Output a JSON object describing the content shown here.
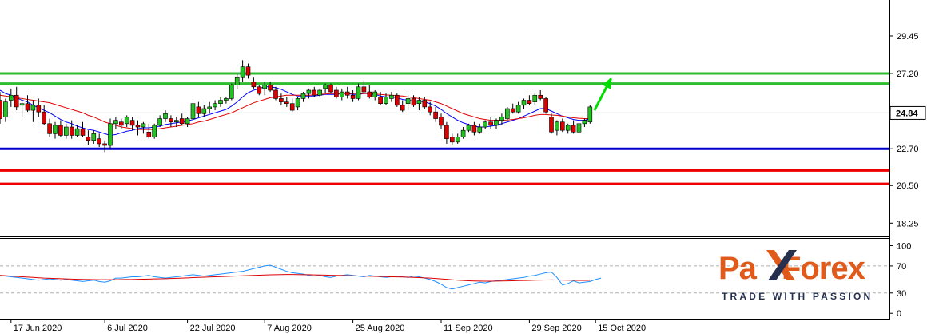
{
  "chart_data": {
    "type": "candlestick",
    "title": "",
    "xlabel": "",
    "ylabel": "",
    "x_tick_labels": [
      "17 Jun 2020",
      "6 Jul 2020",
      "22 Jul 2020",
      "7 Aug 2020",
      "25 Aug 2020",
      "11 Sep 2020",
      "29 Sep 2020",
      "15 Oct 2020"
    ],
    "y_tick_labels": [
      "29.45",
      "27.20",
      "22.70",
      "20.50",
      "18.25"
    ],
    "y_ticks": [
      29.45,
      27.2,
      22.7,
      20.5,
      18.25
    ],
    "ylim": [
      17.5,
      31.6
    ],
    "current_price": {
      "label": "24.84",
      "value": 24.84
    },
    "candles": [
      [
        25.6,
        26.1,
        24.2,
        24.5
      ],
      [
        24.6,
        25.7,
        24.3,
        25.5
      ],
      [
        25.6,
        26.3,
        25.2,
        25.9
      ],
      [
        25.9,
        26.4,
        25.0,
        25.2
      ],
      [
        25.3,
        25.8,
        24.6,
        25.4
      ],
      [
        25.4,
        25.9,
        24.9,
        25.0
      ],
      [
        25.0,
        25.6,
        24.3,
        25.3
      ],
      [
        25.3,
        25.7,
        24.6,
        24.9
      ],
      [
        24.9,
        25.3,
        24.1,
        24.2
      ],
      [
        24.2,
        24.5,
        23.4,
        23.6
      ],
      [
        23.6,
        24.3,
        23.3,
        24.1
      ],
      [
        24.1,
        24.4,
        23.4,
        23.5
      ],
      [
        23.5,
        24.2,
        23.3,
        24.0
      ],
      [
        24.0,
        24.4,
        23.3,
        23.5
      ],
      [
        23.5,
        24.1,
        23.4,
        23.9
      ],
      [
        23.9,
        24.3,
        23.4,
        23.5
      ],
      [
        23.4,
        23.8,
        22.9,
        23.2
      ],
      [
        23.2,
        23.8,
        23.0,
        23.6
      ],
      [
        23.3,
        23.6,
        22.8,
        23.0
      ],
      [
        23.0,
        23.2,
        22.5,
        22.9
      ],
      [
        22.9,
        24.5,
        22.7,
        24.2
      ],
      [
        24.2,
        24.6,
        23.9,
        24.4
      ],
      [
        24.3,
        24.5,
        23.9,
        24.1
      ],
      [
        24.2,
        24.7,
        24.0,
        24.6
      ],
      [
        24.4,
        24.6,
        23.8,
        24.1
      ],
      [
        24.1,
        24.4,
        23.5,
        24.0
      ],
      [
        24.0,
        24.3,
        23.6,
        24.2
      ],
      [
        23.7,
        24.2,
        23.3,
        23.4
      ],
      [
        23.4,
        24.2,
        23.3,
        24.1
      ],
      [
        24.1,
        24.7,
        24.0,
        24.5
      ],
      [
        24.5,
        25.0,
        24.3,
        24.8
      ],
      [
        24.5,
        24.7,
        24.0,
        24.3
      ],
      [
        24.3,
        24.6,
        24.0,
        24.4
      ],
      [
        24.5,
        24.8,
        24.1,
        24.2
      ],
      [
        24.2,
        24.6,
        24.0,
        24.5
      ],
      [
        24.5,
        25.5,
        24.4,
        25.4
      ],
      [
        25.2,
        25.5,
        24.6,
        24.8
      ],
      [
        24.8,
        25.3,
        24.6,
        25.1
      ],
      [
        25.1,
        25.5,
        24.8,
        25.2
      ],
      [
        25.2,
        25.6,
        25.0,
        25.4
      ],
      [
        25.4,
        25.8,
        25.2,
        25.6
      ],
      [
        25.6,
        25.8,
        25.4,
        25.7
      ],
      [
        25.7,
        26.6,
        25.6,
        26.5
      ],
      [
        26.5,
        27.2,
        26.3,
        27.0
      ],
      [
        27.0,
        28.0,
        26.7,
        27.6
      ],
      [
        27.6,
        27.8,
        26.9,
        27.1
      ],
      [
        26.7,
        27.0,
        26.3,
        26.4
      ],
      [
        26.4,
        26.5,
        25.9,
        26.0
      ],
      [
        26.3,
        26.7,
        25.9,
        26.5
      ],
      [
        26.5,
        26.7,
        26.1,
        26.2
      ],
      [
        26.2,
        26.4,
        25.6,
        25.7
      ],
      [
        25.7,
        26.0,
        25.3,
        25.5
      ],
      [
        25.5,
        25.8,
        25.2,
        25.4
      ],
      [
        25.4,
        25.7,
        24.9,
        25.0
      ],
      [
        25.2,
        25.8,
        25.0,
        25.7
      ],
      [
        25.7,
        26.1,
        25.5,
        26.0
      ],
      [
        26.0,
        26.3,
        25.7,
        26.2
      ],
      [
        26.2,
        26.4,
        25.8,
        25.9
      ],
      [
        25.9,
        26.3,
        25.8,
        26.2
      ],
      [
        26.3,
        26.6,
        26.0,
        26.5
      ],
      [
        26.5,
        26.6,
        26.0,
        26.1
      ],
      [
        26.2,
        26.4,
        25.7,
        25.8
      ],
      [
        25.8,
        26.3,
        25.6,
        26.1
      ],
      [
        26.1,
        26.4,
        25.7,
        25.9
      ],
      [
        25.9,
        26.2,
        25.5,
        25.7
      ],
      [
        25.7,
        26.6,
        25.6,
        26.4
      ],
      [
        26.4,
        26.8,
        26.0,
        26.1
      ],
      [
        26.1,
        26.5,
        25.7,
        25.8
      ],
      [
        25.8,
        26.2,
        25.6,
        26.1
      ],
      [
        25.8,
        26.1,
        25.3,
        25.4
      ],
      [
        25.4,
        26.0,
        25.3,
        25.8
      ],
      [
        25.7,
        26.1,
        25.5,
        25.9
      ],
      [
        25.9,
        26.0,
        25.2,
        25.3
      ],
      [
        25.3,
        25.6,
        24.9,
        25.0
      ],
      [
        25.4,
        25.9,
        25.0,
        25.7
      ],
      [
        25.7,
        25.9,
        25.2,
        25.3
      ],
      [
        25.4,
        25.8,
        25.0,
        25.6
      ],
      [
        25.6,
        25.8,
        25.1,
        25.2
      ],
      [
        25.2,
        25.5,
        24.7,
        24.9
      ],
      [
        24.9,
        25.2,
        24.3,
        24.5
      ],
      [
        24.6,
        24.8,
        23.9,
        24.1
      ],
      [
        24.1,
        24.3,
        23.0,
        23.3
      ],
      [
        23.4,
        23.6,
        22.9,
        23.1
      ],
      [
        23.1,
        23.6,
        23.0,
        23.4
      ],
      [
        23.4,
        24.0,
        23.3,
        23.8
      ],
      [
        23.8,
        24.2,
        23.7,
        24.1
      ],
      [
        24.1,
        24.3,
        23.5,
        23.7
      ],
      [
        23.7,
        24.2,
        23.6,
        24.0
      ],
      [
        24.0,
        24.4,
        23.9,
        24.3
      ],
      [
        24.3,
        24.6,
        23.9,
        24.1
      ],
      [
        24.1,
        24.5,
        23.9,
        24.4
      ],
      [
        24.4,
        24.8,
        24.1,
        24.6
      ],
      [
        24.5,
        25.2,
        24.4,
        25.1
      ],
      [
        25.1,
        25.4,
        24.8,
        24.9
      ],
      [
        24.9,
        25.5,
        24.8,
        25.3
      ],
      [
        25.3,
        25.7,
        25.1,
        25.6
      ],
      [
        25.6,
        25.9,
        25.3,
        25.4
      ],
      [
        25.5,
        26.0,
        25.3,
        25.9
      ],
      [
        25.9,
        26.2,
        25.6,
        25.7
      ],
      [
        25.7,
        25.8,
        24.8,
        24.9
      ],
      [
        24.6,
        24.8,
        23.6,
        23.7
      ],
      [
        23.8,
        24.4,
        23.5,
        24.3
      ],
      [
        24.3,
        24.5,
        23.7,
        23.8
      ],
      [
        23.8,
        24.2,
        23.6,
        24.1
      ],
      [
        24.1,
        24.4,
        23.6,
        23.7
      ],
      [
        23.7,
        24.3,
        23.6,
        24.2
      ],
      [
        24.2,
        24.5,
        24.0,
        24.4
      ],
      [
        24.3,
        25.3,
        24.2,
        25.2
      ]
    ],
    "moving_averages": [
      {
        "color": "#0000ff",
        "values": [
          26.2,
          26.0,
          25.9,
          25.75,
          25.6,
          25.5,
          25.3,
          25.15,
          25.0,
          24.85,
          24.65,
          24.45,
          24.3,
          24.2,
          24.05,
          23.95,
          23.85,
          23.8,
          23.7,
          23.6,
          23.5,
          23.55,
          23.65,
          23.75,
          23.8,
          23.9,
          23.95,
          23.95,
          24.0,
          24.05,
          24.15,
          24.2,
          24.25,
          24.3,
          24.35,
          24.45,
          24.55,
          24.65,
          24.75,
          24.85,
          24.95,
          25.05,
          25.25,
          25.5,
          25.8,
          26.05,
          26.2,
          26.3,
          26.4,
          26.4,
          26.35,
          26.25,
          26.1,
          25.95,
          25.85,
          25.85,
          25.85,
          25.85,
          25.9,
          25.95,
          25.95,
          25.95,
          26.0,
          26.0,
          25.95,
          25.95,
          26.0,
          26.0,
          25.95,
          25.85,
          25.8,
          25.8,
          25.75,
          25.65,
          25.6,
          25.55,
          25.55,
          25.5,
          25.4,
          25.25,
          25.05,
          24.8,
          24.6,
          24.4,
          24.25,
          24.15,
          24.05,
          24.0,
          24.0,
          24.05,
          24.1,
          24.2,
          24.3,
          24.4,
          24.5,
          24.65,
          24.8,
          24.95,
          25.1,
          25.1,
          24.95,
          24.8,
          24.65,
          24.55,
          24.45,
          24.4,
          24.4,
          24.5
        ]
      },
      {
        "color": "#e00000",
        "values": [
          25.9,
          25.85,
          25.8,
          25.75,
          25.7,
          25.65,
          25.6,
          25.55,
          25.5,
          25.45,
          25.35,
          25.25,
          25.15,
          25.05,
          24.95,
          24.85,
          24.7,
          24.6,
          24.45,
          24.3,
          24.2,
          24.1,
          24.0,
          23.95,
          23.9,
          23.85,
          23.85,
          23.85,
          23.85,
          23.9,
          23.95,
          24.0,
          24.05,
          24.1,
          24.15,
          24.2,
          24.3,
          24.35,
          24.45,
          24.55,
          24.65,
          24.75,
          24.85,
          25.0,
          25.15,
          25.3,
          25.45,
          25.55,
          25.65,
          25.75,
          25.8,
          25.85,
          25.9,
          25.9,
          25.9,
          25.9,
          25.9,
          25.92,
          25.95,
          25.97,
          26.0,
          26.0,
          26.0,
          26.0,
          26.0,
          26.0,
          26.0,
          26.0,
          25.97,
          25.95,
          25.92,
          25.9,
          25.87,
          25.85,
          25.8,
          25.75,
          25.7,
          25.65,
          25.6,
          25.5,
          25.4,
          25.25,
          25.1,
          24.95,
          24.8,
          24.7,
          24.6,
          24.5,
          24.45,
          24.4,
          24.4,
          24.4,
          24.42,
          24.45,
          24.5,
          24.55,
          24.62,
          24.7,
          24.75,
          24.75,
          24.72,
          24.7,
          24.65,
          24.6,
          24.55,
          24.52,
          24.5,
          24.5
        ]
      }
    ],
    "horizontal_levels": [
      {
        "value": 27.2,
        "color": "#2ebd2e"
      },
      {
        "value": 26.6,
        "color": "#2ebd2e"
      },
      {
        "value": 22.7,
        "color": "#0000cc"
      },
      {
        "value": 21.4,
        "color": "#ee0000"
      },
      {
        "value": 20.6,
        "color": "#ee0000"
      }
    ],
    "forecast_arrow": {
      "color": "#00dd00",
      "direction": "up",
      "from": [
        0.8,
        25.0
      ],
      "to": [
        3.8,
        26.9
      ]
    },
    "indicator": {
      "y_tick_labels": [
        "100",
        "70",
        "30",
        "0"
      ],
      "y_ticks": [
        100,
        70,
        30,
        0
      ],
      "ylim": [
        -8,
        110
      ],
      "levels": [
        70,
        30
      ],
      "series": [
        {
          "color": "#1e90ff",
          "values": [
            56,
            55,
            54,
            53,
            52,
            51,
            50,
            49,
            50,
            51,
            50,
            49,
            50,
            49,
            48,
            47,
            48,
            49,
            47,
            46,
            48,
            52,
            52,
            53,
            54,
            54,
            55,
            56,
            54,
            53,
            52,
            53,
            54,
            55,
            56,
            57,
            56,
            55,
            56,
            57,
            58,
            59,
            60,
            61,
            62,
            64,
            66,
            68,
            70,
            71,
            68,
            65,
            62,
            60,
            59,
            58,
            56,
            55,
            56,
            54,
            53,
            55,
            56,
            57,
            56,
            55,
            54,
            56,
            55,
            54,
            53,
            54,
            55,
            54,
            53,
            55,
            54,
            52,
            50,
            47,
            43,
            38,
            36,
            38,
            40,
            42,
            44,
            46,
            45,
            47,
            48,
            49,
            50,
            51,
            52,
            53,
            55,
            56,
            58,
            60,
            61,
            53,
            42,
            44,
            48,
            45,
            46,
            47,
            50,
            52
          ]
        },
        {
          "color": "#dd0000",
          "values": [
            56,
            55.5,
            55,
            54.5,
            54,
            53.5,
            53,
            52.5,
            52,
            51.7,
            51.4,
            51.1,
            50.8,
            50.5,
            50.3,
            50.1,
            49.9,
            49.8,
            49.7,
            49.6,
            49.6,
            49.7,
            49.8,
            49.9,
            50,
            50.2,
            50.4,
            50.6,
            50.8,
            51,
            51.2,
            51.5,
            51.8,
            52.1,
            52.4,
            52.7,
            53,
            53.3,
            53.6,
            53.9,
            54.2,
            54.5,
            54.8,
            55.1,
            55.4,
            55.7,
            56,
            56.3,
            56.6,
            56.9,
            57.1,
            57.2,
            57.3,
            57.3,
            57.2,
            57.1,
            57,
            56.8,
            56.6,
            56.4,
            56.2,
            56,
            55.8,
            55.6,
            55.4,
            55.2,
            55,
            54.8,
            54.6,
            54.4,
            54.2,
            54,
            53.8,
            53.6,
            53.4,
            53.1,
            52.8,
            52.4,
            52,
            51.5,
            50.9,
            50.2,
            49.6,
            49,
            48.5,
            48.1,
            47.8,
            47.6,
            47.5,
            47.5,
            47.6,
            47.7,
            47.9,
            48.1,
            48.3,
            48.5,
            48.7,
            48.9,
            49.1,
            49.3,
            49.4,
            49.3,
            49.1,
            48.9,
            48.8,
            48.7,
            48.7,
            48.8
          ]
        }
      ]
    }
  },
  "logo": {
    "name_part1": "Pa",
    "name_part2": "Forex",
    "tagline": "TRADE WITH PASSION"
  },
  "colors": {
    "bull": "#22c222",
    "bear": "#dd0000",
    "axis": "#000000",
    "indicator_grid": "#b0b0b0",
    "logo_orange": "#e05a1b",
    "logo_navy": "#24304d"
  }
}
